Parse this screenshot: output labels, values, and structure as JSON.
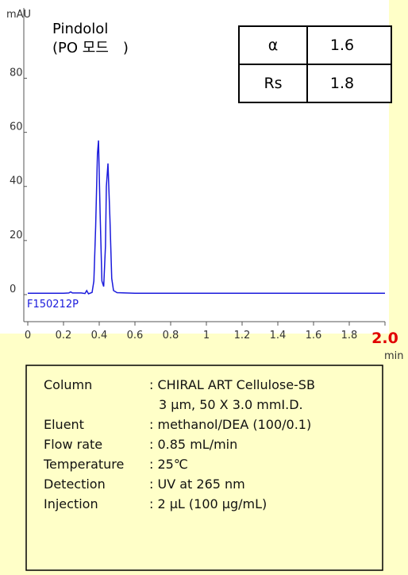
{
  "chart_data": {
    "type": "line",
    "title": "Pindolol",
    "subtitle": "(PO 모드　)",
    "y_label": "mAU",
    "x_label": "min",
    "annotation": "F150212P",
    "x": [
      0,
      0.2,
      0.23,
      0.24,
      0.25,
      0.3,
      0.32,
      0.33,
      0.34,
      0.36,
      0.37,
      0.38,
      0.39,
      0.396,
      0.405,
      0.415,
      0.425,
      0.435,
      0.44,
      0.449,
      0.46,
      0.47,
      0.48,
      0.5,
      0.6,
      1.0,
      2.0
    ],
    "series": [
      {
        "color": "#1a1adc",
        "values": [
          0.5,
          0.5,
          0.6,
          1,
          0.6,
          0.6,
          0.4,
          1.5,
          0.3,
          0.8,
          5,
          25,
          52,
          57,
          30,
          5,
          3,
          18,
          40,
          48.5,
          28,
          6,
          1.5,
          0.7,
          0.5,
          0.5,
          0.5
        ]
      }
    ],
    "xlim": [
      -0.02,
      2.0
    ],
    "ylim": [
      -10,
      106
    ],
    "xticks": [
      0,
      0.2,
      0.4,
      0.6,
      0.8,
      1,
      1.2,
      1.4,
      1.6,
      1.8,
      {
        "value": 2.0,
        "label": "2.0"
      }
    ],
    "yticks": [
      0,
      20,
      40,
      60,
      80
    ],
    "table": [
      [
        "α",
        "1.6"
      ],
      [
        "Rs",
        "1.8"
      ]
    ]
  },
  "conditions": [
    {
      "label": "Column",
      "lines": [
        ": CHIRAL ART Cellulose-SB",
        "3 μm, 50 X 3.0 mmI.D."
      ]
    },
    {
      "label": "Eluent",
      "lines": [
        ": methanol/DEA (100/0.1)"
      ]
    },
    {
      "label": "Flow rate",
      "lines": [
        ": 0.85 mL/min"
      ]
    },
    {
      "label": "Temperature",
      "lines": [
        ": 25℃"
      ]
    },
    {
      "label": "Detection",
      "lines": [
        ": UV at 265 nm"
      ]
    },
    {
      "label": "Injection",
      "lines": [
        ": 2 μL (100 μg/mL)"
      ]
    }
  ]
}
